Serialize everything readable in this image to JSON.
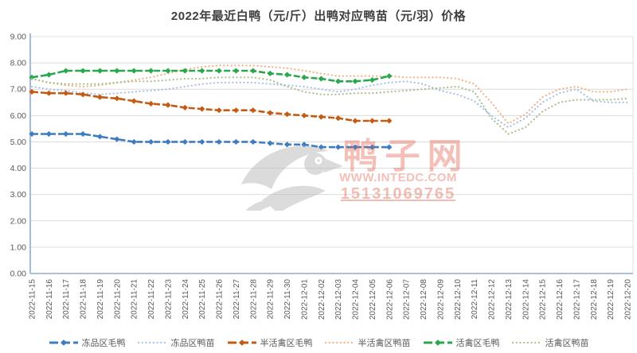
{
  "watermark": {
    "brand": "鸭子网",
    "site": "WWW.INTEDC.COM",
    "phone": "15131069765",
    "color": "#e05a45",
    "logo": "duck-logo"
  },
  "axes": {
    "y_tick_labels": [
      "0.00",
      "1.00",
      "2.00",
      "3.00",
      "4.00",
      "5.00",
      "6.00",
      "7.00",
      "8.00",
      "9.00"
    ],
    "axis_color": "#8ea9db",
    "grid_color": "#dcdcdc",
    "label_color": "#595959"
  },
  "chart_data": {
    "type": "line",
    "title": "2022年最近白鸭（元/斤）出鸭对应鸭苗（元/羽）价格",
    "xlabel": "",
    "ylabel": "",
    "ylim": [
      0,
      9
    ],
    "ytick_step": 1,
    "grid": true,
    "legend_position": "bottom",
    "x": [
      "2022-11-15",
      "2022-11-16",
      "2022-11-17",
      "2022-11-18",
      "2022-11-19",
      "2022-11-20",
      "2022-11-21",
      "2022-11-22",
      "2022-11-23",
      "2022-11-24",
      "2022-11-25",
      "2022-11-26",
      "2022-11-27",
      "2022-11-28",
      "2022-11-29",
      "2022-11-30",
      "2022-12-01",
      "2022-12-02",
      "2022-12-03",
      "2022-12-04",
      "2022-12-05",
      "2022-12-06",
      "2022-12-07",
      "2022-12-08",
      "2022-12-09",
      "2022-12-10",
      "2022-12-11",
      "2022-12-12",
      "2022-12-13",
      "2022-12-14",
      "2022-12-15",
      "2022-12-16",
      "2022-12-17",
      "2022-12-18",
      "2022-12-19",
      "2022-12-20"
    ],
    "series": [
      {
        "name": "冻品区毛鸭",
        "style": "solid",
        "marker": "diamond",
        "color": "#3e7cc0",
        "values": [
          5.3,
          5.3,
          5.3,
          5.3,
          5.2,
          5.1,
          5.0,
          5.0,
          5.0,
          5.0,
          5.0,
          5.0,
          5.0,
          5.0,
          4.95,
          4.9,
          4.9,
          4.8,
          4.8,
          4.8,
          4.8,
          4.8,
          null,
          null,
          null,
          null,
          null,
          null,
          null,
          null,
          null,
          null,
          null,
          null,
          null,
          null
        ]
      },
      {
        "name": "冻品区鸭苗",
        "style": "dotted",
        "marker": "none",
        "color": "#a8c0e8",
        "values": [
          7.1,
          7.0,
          6.95,
          6.85,
          6.8,
          6.85,
          6.9,
          6.95,
          7.0,
          7.1,
          7.2,
          7.25,
          7.25,
          7.25,
          7.2,
          7.15,
          7.1,
          7.0,
          6.9,
          7.0,
          7.15,
          7.25,
          7.3,
          7.2,
          6.95,
          6.8,
          6.55,
          6.0,
          5.55,
          5.9,
          6.5,
          6.85,
          7.0,
          6.55,
          6.5,
          6.5
        ]
      },
      {
        "name": "半活禽区毛鸭",
        "style": "solid",
        "marker": "diamond",
        "color": "#c55a11",
        "values": [
          6.9,
          6.85,
          6.85,
          6.8,
          6.7,
          6.65,
          6.55,
          6.45,
          6.4,
          6.3,
          6.25,
          6.2,
          6.2,
          6.2,
          6.1,
          6.05,
          6.0,
          5.95,
          5.9,
          5.8,
          5.8,
          5.8,
          null,
          null,
          null,
          null,
          null,
          null,
          null,
          null,
          null,
          null,
          null,
          null,
          null,
          null
        ]
      },
      {
        "name": "半活禽区鸭苗",
        "style": "dotted",
        "marker": "none",
        "color": "#f4b183",
        "values": [
          7.4,
          7.25,
          7.15,
          7.1,
          7.15,
          7.25,
          7.35,
          7.45,
          7.6,
          7.75,
          7.85,
          7.9,
          7.9,
          7.9,
          7.85,
          7.8,
          7.7,
          7.6,
          7.5,
          7.5,
          7.5,
          7.5,
          7.45,
          7.45,
          7.45,
          7.4,
          7.2,
          6.5,
          5.7,
          6.05,
          6.7,
          7.0,
          7.1,
          6.9,
          6.9,
          7.0
        ]
      },
      {
        "name": "活禽区毛鸭",
        "style": "solid",
        "marker": "diamond",
        "color": "#28a74c",
        "values": [
          7.45,
          7.55,
          7.7,
          7.7,
          7.7,
          7.7,
          7.7,
          7.7,
          7.7,
          7.7,
          7.7,
          7.7,
          7.7,
          7.7,
          7.6,
          7.55,
          7.45,
          7.4,
          7.3,
          7.3,
          7.35,
          7.5,
          null,
          null,
          null,
          null,
          null,
          null,
          null,
          null,
          null,
          null,
          null,
          null,
          null,
          null
        ]
      },
      {
        "name": "活禽区鸭苗",
        "style": "dotted",
        "marker": "none",
        "color": "#a9c08c",
        "values": [
          7.4,
          7.25,
          7.2,
          7.2,
          7.2,
          7.25,
          7.3,
          7.3,
          7.35,
          7.4,
          7.4,
          7.45,
          7.45,
          7.45,
          7.35,
          7.1,
          6.9,
          6.8,
          6.8,
          6.85,
          6.85,
          6.9,
          6.95,
          7.0,
          7.05,
          7.1,
          6.9,
          5.9,
          5.3,
          5.55,
          6.15,
          6.5,
          6.6,
          6.6,
          6.6,
          6.65
        ]
      }
    ]
  }
}
